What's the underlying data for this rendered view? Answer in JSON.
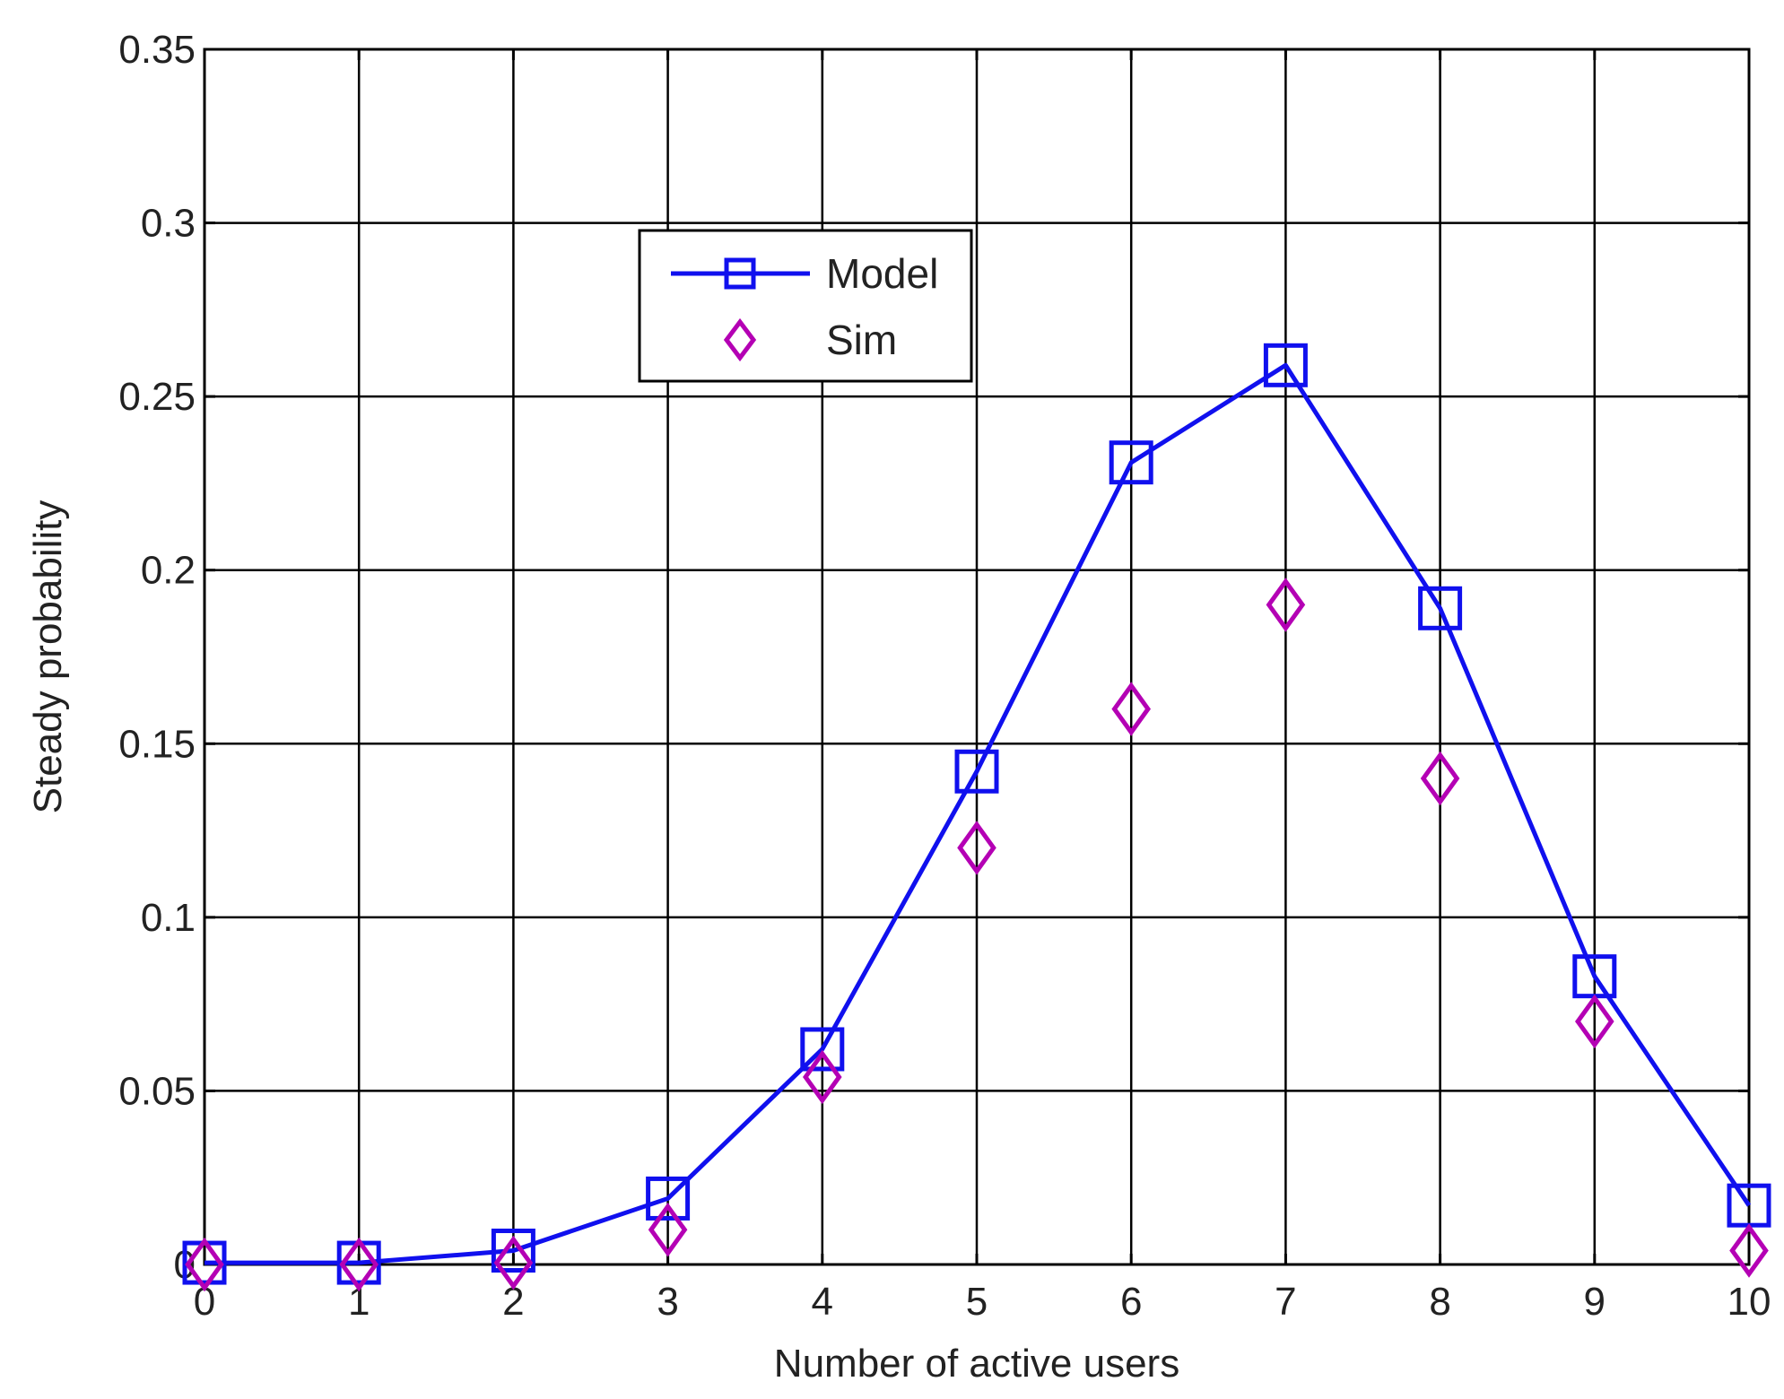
{
  "chart_data": {
    "type": "line",
    "title": "",
    "xlabel": "Number of  active users",
    "ylabel": "Steady probability",
    "xlim": [
      0,
      10
    ],
    "ylim": [
      0,
      0.35
    ],
    "grid": true,
    "legend_position": "upper-center",
    "x_ticks": [
      "0",
      "1",
      "2",
      "3",
      "4",
      "5",
      "6",
      "7",
      "8",
      "9",
      "10"
    ],
    "y_ticks": [
      "0",
      "0.05",
      "0.1",
      "0.15",
      "0.2",
      "0.25",
      "0.3",
      "0.35"
    ],
    "x": [
      0,
      1,
      2,
      3,
      4,
      5,
      6,
      7,
      8,
      9,
      10
    ],
    "series": [
      {
        "name": "Model",
        "style": "line-with-square-markers",
        "color": "#1010ee",
        "values": [
          0.0005,
          0.0005,
          0.004,
          0.019,
          0.062,
          0.142,
          0.231,
          0.259,
          0.189,
          0.083,
          0.017
        ]
      },
      {
        "name": "Sim",
        "style": "diamond-markers-only",
        "color": "#b400b4",
        "values": [
          0.0,
          0.0,
          0.0005,
          0.01,
          0.054,
          0.12,
          0.16,
          0.19,
          0.14,
          0.07,
          0.004
        ]
      }
    ]
  }
}
